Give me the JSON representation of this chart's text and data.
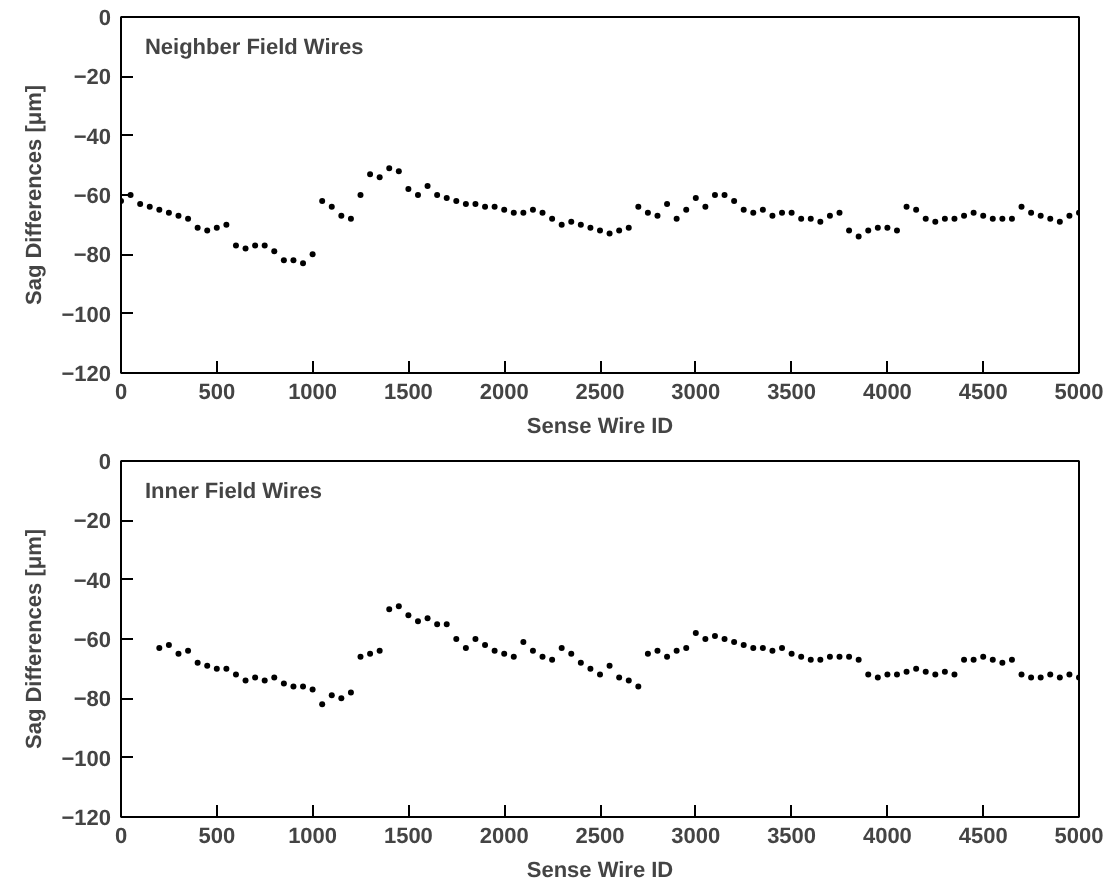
{
  "chart_data": [
    {
      "type": "scatter",
      "title": "Neighber Field Wires",
      "xlabel": "Sense Wire ID",
      "ylabel": "Sag Differences [μm]",
      "xlim": [
        0,
        5000
      ],
      "ylim": [
        -120,
        0
      ],
      "xticks": [
        0,
        500,
        1000,
        1500,
        2000,
        2500,
        3000,
        3500,
        4000,
        4500,
        5000
      ],
      "yticks": [
        -120,
        -100,
        -80,
        -60,
        -40,
        -20,
        0
      ],
      "grid": false,
      "marker": "circle",
      "series": [
        {
          "color": "#000000",
          "x": [
            0,
            50,
            100,
            150,
            200,
            250,
            300,
            350,
            400,
            450,
            500,
            550,
            600,
            650,
            700,
            750,
            800,
            850,
            900,
            950,
            1000,
            1050,
            1100,
            1150,
            1200,
            1250,
            1300,
            1350,
            1400,
            1450,
            1500,
            1550,
            1600,
            1650,
            1700,
            1750,
            1800,
            1850,
            1900,
            1950,
            2000,
            2050,
            2100,
            2150,
            2200,
            2250,
            2300,
            2350,
            2400,
            2450,
            2500,
            2550,
            2600,
            2650,
            2700,
            2750,
            2800,
            2850,
            2900,
            2950,
            3000,
            3050,
            3100,
            3150,
            3200,
            3250,
            3300,
            3350,
            3400,
            3450,
            3500,
            3550,
            3600,
            3650,
            3700,
            3750,
            3800,
            3850,
            3900,
            3950,
            4000,
            4050,
            4100,
            4150,
            4200,
            4250,
            4300,
            4350,
            4400,
            4450,
            4500,
            4550,
            4600,
            4650,
            4700,
            4750,
            4800,
            4850,
            4900,
            4950,
            5000
          ],
          "values": [
            -62,
            -60,
            -63,
            -64,
            -65,
            -66,
            -67,
            -68,
            -71,
            -72,
            -71,
            -70,
            -77,
            -78,
            -77,
            -77,
            -79,
            -82,
            -82,
            -83,
            -80,
            -62,
            -64,
            -67,
            -68,
            -60,
            -53,
            -54,
            -51,
            -52,
            -58,
            -60,
            -57,
            -60,
            -61,
            -62,
            -63,
            -63,
            -64,
            -64,
            -65,
            -66,
            -66,
            -65,
            -66,
            -68,
            -70,
            -69,
            -70,
            -71,
            -72,
            -73,
            -72,
            -71,
            -64,
            -66,
            -67,
            -63,
            -68,
            -65,
            -61,
            -64,
            -60,
            -60,
            -62,
            -65,
            -66,
            -65,
            -67,
            -66,
            -66,
            -68,
            -68,
            -69,
            -67,
            -66,
            -72,
            -74,
            -72,
            -71,
            -71,
            -72,
            -64,
            -65,
            -68,
            -69,
            -68,
            -68,
            -67,
            -66,
            -67,
            -68,
            -68,
            -68,
            -64,
            -66,
            -67,
            -68,
            -69,
            -67,
            -66
          ]
        }
      ]
    },
    {
      "type": "scatter",
      "title": "Inner Field Wires",
      "xlabel": "Sense Wire ID",
      "ylabel": "Sag Differences [μm]",
      "xlim": [
        0,
        5000
      ],
      "ylim": [
        -120,
        0
      ],
      "xticks": [
        0,
        500,
        1000,
        1500,
        2000,
        2500,
        3000,
        3500,
        4000,
        4500,
        5000
      ],
      "yticks": [
        -120,
        -100,
        -80,
        -60,
        -40,
        -20,
        0
      ],
      "grid": false,
      "marker": "circle",
      "series": [
        {
          "color": "#000000",
          "x": [
            200,
            250,
            300,
            350,
            400,
            450,
            500,
            550,
            600,
            650,
            700,
            750,
            800,
            850,
            900,
            950,
            1000,
            1050,
            1100,
            1150,
            1200,
            1250,
            1300,
            1350,
            1400,
            1450,
            1500,
            1550,
            1600,
            1650,
            1700,
            1750,
            1800,
            1850,
            1900,
            1950,
            2000,
            2050,
            2100,
            2150,
            2200,
            2250,
            2300,
            2350,
            2400,
            2450,
            2500,
            2550,
            2600,
            2650,
            2700,
            2750,
            2800,
            2850,
            2900,
            2950,
            3000,
            3050,
            3100,
            3150,
            3200,
            3250,
            3300,
            3350,
            3400,
            3450,
            3500,
            3550,
            3600,
            3650,
            3700,
            3750,
            3800,
            3850,
            3900,
            3950,
            4000,
            4050,
            4100,
            4150,
            4200,
            4250,
            4300,
            4350,
            4400,
            4450,
            4500,
            4550,
            4600,
            4650,
            4700,
            4750,
            4800,
            4850,
            4900,
            4950,
            5000
          ],
          "values": [
            -63,
            -62,
            -65,
            -64,
            -68,
            -69,
            -70,
            -70,
            -72,
            -74,
            -73,
            -74,
            -73,
            -75,
            -76,
            -76,
            -77,
            -82,
            -79,
            -80,
            -78,
            -66,
            -65,
            -64,
            -50,
            -49,
            -52,
            -54,
            -53,
            -55,
            -55,
            -60,
            -63,
            -60,
            -62,
            -64,
            -65,
            -66,
            -61,
            -64,
            -66,
            -67,
            -63,
            -65,
            -68,
            -70,
            -72,
            -69,
            -73,
            -74,
            -76,
            -65,
            -64,
            -66,
            -64,
            -63,
            -58,
            -60,
            -59,
            -60,
            -61,
            -62,
            -63,
            -63,
            -64,
            -63,
            -65,
            -66,
            -67,
            -67,
            -66,
            -66,
            -66,
            -67,
            -72,
            -73,
            -72,
            -72,
            -71,
            -70,
            -71,
            -72,
            -71,
            -72,
            -67,
            -67,
            -66,
            -67,
            -68,
            -67,
            -72,
            -73,
            -73,
            -72,
            -73,
            -72,
            -73
          ]
        }
      ]
    }
  ]
}
